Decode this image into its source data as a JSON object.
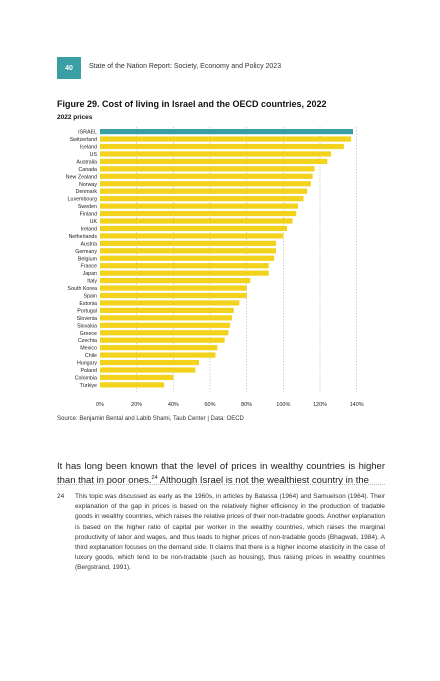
{
  "header": {
    "page_number": "40",
    "running_title": "State of the Nation Report: Society, Economy and Policy 2023"
  },
  "figure": {
    "title": "Figure 29. Cost of living in Israel and the OECD countries, 2022",
    "subtitle": "2022 prices",
    "source": "Source: Benjamin Bental and Labib Shami, Taub Center | Data: OECD"
  },
  "chart_data": {
    "type": "bar",
    "orientation": "horizontal",
    "categories": [
      "ISRAEL",
      "Switzerland",
      "Iceland",
      "US",
      "Australia",
      "Canada",
      "New Zealand",
      "Norway",
      "Denmark",
      "Luxembourg",
      "Sweden",
      "Finland",
      "UK",
      "Ireland",
      "Netherlands",
      "Austria",
      "Germany",
      "Belgium",
      "France",
      "Japan",
      "Italy",
      "South Korea",
      "Spain",
      "Estonia",
      "Portugal",
      "Slovenia",
      "Slovakia",
      "Greece",
      "Czechia",
      "Mexico",
      "Chile",
      "Hungary",
      "Poland",
      "Colombia",
      "Türkiye"
    ],
    "values": [
      138,
      137,
      133,
      126,
      124,
      117,
      116,
      115,
      113,
      111,
      108,
      107,
      105,
      102,
      100,
      96,
      96,
      95,
      92,
      92,
      82,
      80,
      80,
      76,
      73,
      72,
      71,
      70,
      68,
      64,
      63,
      54,
      52,
      40,
      35
    ],
    "highlight": "ISRAEL",
    "xlim": [
      0,
      150
    ],
    "ticks": [
      "0%",
      "20%",
      "40%",
      "60%",
      "80%",
      "100%",
      "120%",
      "140%"
    ],
    "tick_values": [
      0,
      20,
      40,
      60,
      80,
      100,
      120,
      140
    ],
    "grid": true,
    "colors": {
      "bar": "#f2d21b",
      "highlight": "#3a9fa3",
      "grid": "#b0b0b0"
    }
  },
  "body": {
    "paragraph_start": "It has long been known that the level of prices in wealthy countries is higher than that in poor ones.",
    "footnote_ref": "24",
    "paragraph_end": " Although Israel is not the wealthiest country in the"
  },
  "footnote": {
    "number": "24",
    "text": "This topic was discussed as early as the 1960s, in articles by Balassa (1964) and Samuelson (1964). Their explanation of the gap in prices is based on the relatively higher efficiency in the production of tradable goods in wealthy countries, which raises the relative prices of their non-tradable goods. Another explanation is based on the higher ratio of capital per worker in the wealthy countries, which raises the marginal productivity of labor and wages, and thus leads to higher prices of non-tradable goods (Bhagwati, 1984). A third explanation focuses on the demand side. It claims that there is a higher income elasticity in the case of luxury goods, which tend to be non-tradable (such as housing), thus raising prices in wealthy countries (Bergstrand, 1991)."
  }
}
